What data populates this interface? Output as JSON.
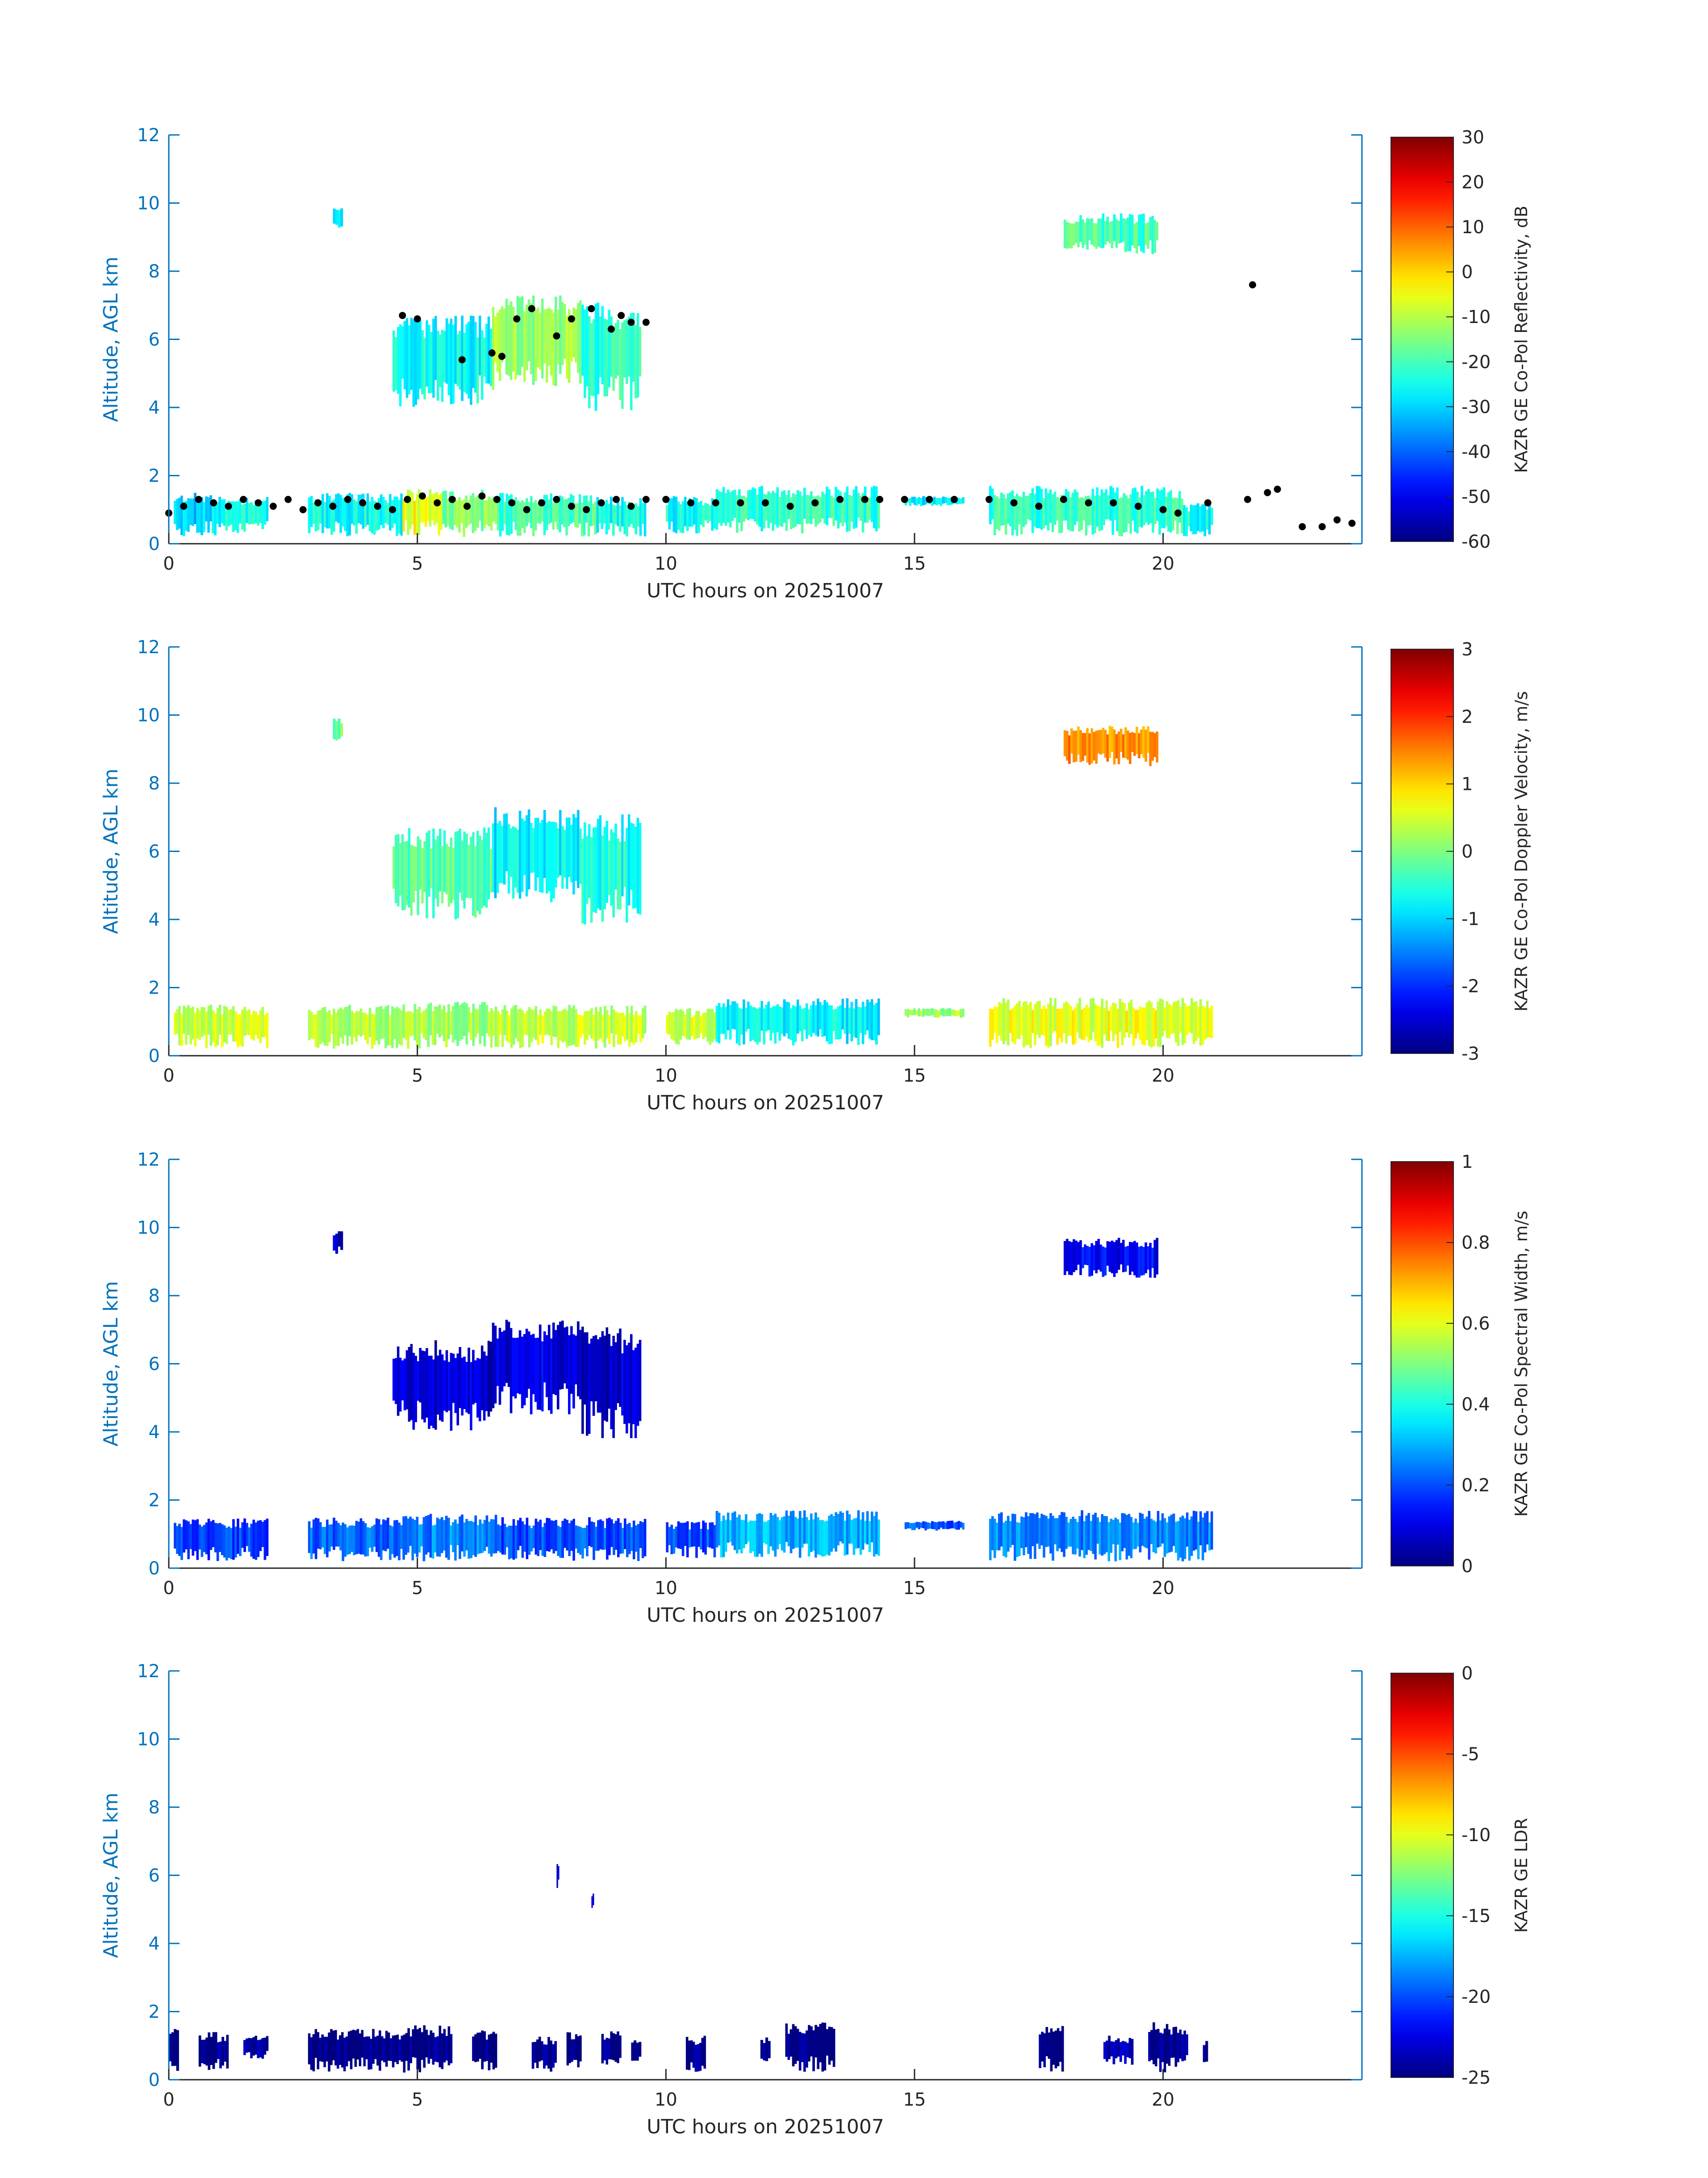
{
  "colors": {
    "axis_blue": "#0072BD",
    "text_dark": "#262626",
    "scatter_black": "#000000"
  },
  "colormap": "jet",
  "chart_data": [
    {
      "type": "heatmap",
      "xlabel": "UTC hours on 20251007",
      "ylabel": "Altitude, AGL km",
      "xlim": [
        0,
        24
      ],
      "ylim": [
        0,
        12
      ],
      "xticks": [
        0,
        5,
        10,
        15,
        20
      ],
      "yticks": [
        0,
        2,
        4,
        6,
        8,
        10,
        12
      ],
      "colorbar": {
        "label": "KAZR GE Co-Pol Reflectivity, dB",
        "range": [
          -60,
          30
        ],
        "ticks": [
          30,
          20,
          10,
          0,
          -10,
          -20,
          -30,
          -40,
          -50,
          -60
        ]
      },
      "patches": [
        {
          "x": [
            0.1,
            1.0
          ],
          "y": [
            0.2,
            1.5
          ],
          "value": -30
        },
        {
          "x": [
            1.0,
            2.0
          ],
          "y": [
            0.3,
            1.4
          ],
          "value": -25
        },
        {
          "x": [
            2.8,
            4.7
          ],
          "y": [
            0.2,
            1.5
          ],
          "value": -25
        },
        {
          "x": [
            4.7,
            5.5
          ],
          "y": [
            0.2,
            1.6
          ],
          "value": -5
        },
        {
          "x": [
            5.5,
            6.6
          ],
          "y": [
            0.2,
            1.6
          ],
          "value": -15
        },
        {
          "x": [
            6.6,
            8.6
          ],
          "y": [
            0.2,
            1.5
          ],
          "value": -20
        },
        {
          "x": [
            8.6,
            9.6
          ],
          "y": [
            0.2,
            1.4
          ],
          "value": -25
        },
        {
          "x": [
            10.0,
            11.0
          ],
          "y": [
            0.3,
            1.4
          ],
          "value": -25
        },
        {
          "x": [
            11.0,
            14.3
          ],
          "y": [
            0.3,
            1.7
          ],
          "value": -22
        },
        {
          "x": [
            14.8,
            16.0
          ],
          "y": [
            1.1,
            1.4
          ],
          "value": -28
        },
        {
          "x": [
            16.5,
            20.4
          ],
          "y": [
            0.2,
            1.7
          ],
          "value": -22
        },
        {
          "x": [
            20.4,
            21.0
          ],
          "y": [
            0.2,
            1.2
          ],
          "value": -25
        },
        {
          "x": [
            4.5,
            6.5
          ],
          "y": [
            4.0,
            6.7
          ],
          "value": -25
        },
        {
          "x": [
            6.5,
            8.3
          ],
          "y": [
            4.5,
            7.3
          ],
          "value": -12
        },
        {
          "x": [
            8.3,
            9.5
          ],
          "y": [
            3.8,
            7.1
          ],
          "value": -22
        },
        {
          "x": [
            3.3,
            3.5
          ],
          "y": [
            9.2,
            9.9
          ],
          "value": -28
        },
        {
          "x": [
            18.0,
            19.9
          ],
          "y": [
            8.5,
            9.7
          ],
          "value": -20
        }
      ],
      "scatter": [
        [
          0.0,
          0.9
        ],
        [
          0.3,
          1.1
        ],
        [
          0.6,
          1.3
        ],
        [
          0.9,
          1.2
        ],
        [
          1.2,
          1.1
        ],
        [
          1.5,
          1.3
        ],
        [
          1.8,
          1.2
        ],
        [
          2.1,
          1.1
        ],
        [
          2.4,
          1.3
        ],
        [
          2.7,
          1.0
        ],
        [
          3.0,
          1.2
        ],
        [
          3.3,
          1.1
        ],
        [
          3.6,
          1.3
        ],
        [
          3.9,
          1.2
        ],
        [
          4.2,
          1.1
        ],
        [
          4.5,
          1.0
        ],
        [
          4.8,
          1.3
        ],
        [
          5.1,
          1.4
        ],
        [
          5.4,
          1.2
        ],
        [
          5.7,
          1.3
        ],
        [
          6.0,
          1.1
        ],
        [
          6.3,
          1.4
        ],
        [
          6.6,
          1.3
        ],
        [
          6.9,
          1.2
        ],
        [
          7.2,
          1.0
        ],
        [
          7.5,
          1.2
        ],
        [
          7.8,
          1.3
        ],
        [
          8.1,
          1.1
        ],
        [
          8.4,
          1.0
        ],
        [
          8.7,
          1.2
        ],
        [
          9.0,
          1.3
        ],
        [
          9.3,
          1.1
        ],
        [
          9.6,
          1.3
        ],
        [
          10.0,
          1.3
        ],
        [
          10.5,
          1.2
        ],
        [
          11.0,
          1.2
        ],
        [
          11.5,
          1.2
        ],
        [
          12.0,
          1.2
        ],
        [
          12.5,
          1.1
        ],
        [
          13.0,
          1.2
        ],
        [
          13.5,
          1.3
        ],
        [
          14.0,
          1.3
        ],
        [
          14.3,
          1.3
        ],
        [
          14.8,
          1.3
        ],
        [
          15.3,
          1.3
        ],
        [
          15.8,
          1.3
        ],
        [
          16.5,
          1.3
        ],
        [
          17.0,
          1.2
        ],
        [
          17.5,
          1.1
        ],
        [
          18.0,
          1.3
        ],
        [
          18.5,
          1.2
        ],
        [
          19.0,
          1.2
        ],
        [
          19.5,
          1.1
        ],
        [
          20.0,
          1.0
        ],
        [
          20.3,
          0.9
        ],
        [
          20.9,
          1.2
        ],
        [
          21.7,
          1.3
        ],
        [
          22.1,
          1.5
        ],
        [
          22.3,
          1.6
        ],
        [
          22.8,
          0.5
        ],
        [
          23.2,
          0.5
        ],
        [
          23.5,
          0.7
        ],
        [
          23.8,
          0.6
        ],
        [
          4.7,
          6.7
        ],
        [
          5.0,
          6.6
        ],
        [
          6.5,
          5.6
        ],
        [
          7.0,
          6.6
        ],
        [
          7.3,
          6.9
        ],
        [
          7.8,
          6.1
        ],
        [
          8.1,
          6.6
        ],
        [
          8.5,
          6.9
        ],
        [
          9.1,
          6.7
        ],
        [
          9.3,
          6.5
        ],
        [
          9.6,
          6.5
        ],
        [
          21.8,
          7.6
        ],
        [
          5.9,
          5.4
        ],
        [
          6.7,
          5.5
        ],
        [
          8.9,
          6.3
        ]
      ]
    },
    {
      "type": "heatmap",
      "xlabel": "UTC hours on 20251007",
      "ylabel": "Altitude, AGL km",
      "xlim": [
        0,
        24
      ],
      "ylim": [
        0,
        12
      ],
      "xticks": [
        0,
        5,
        10,
        15,
        20
      ],
      "yticks": [
        0,
        2,
        4,
        6,
        8,
        10,
        12
      ],
      "colorbar": {
        "label": "KAZR GE Co-Pol Doppler Velocity, m/s",
        "range": [
          -3,
          3
        ],
        "ticks": [
          3,
          2,
          1,
          0,
          -1,
          -2,
          -3
        ]
      },
      "patches": [
        {
          "x": [
            0.1,
            2.0
          ],
          "y": [
            0.2,
            1.5
          ],
          "value": 0.5
        },
        {
          "x": [
            2.8,
            4.7
          ],
          "y": [
            0.2,
            1.5
          ],
          "value": 0.3
        },
        {
          "x": [
            4.7,
            6.6
          ],
          "y": [
            0.2,
            1.6
          ],
          "value": 0.2
        },
        {
          "x": [
            6.6,
            9.6
          ],
          "y": [
            0.2,
            1.5
          ],
          "value": 0.4
        },
        {
          "x": [
            10.0,
            11.0
          ],
          "y": [
            0.3,
            1.4
          ],
          "value": 0.5
        },
        {
          "x": [
            11.0,
            14.3
          ],
          "y": [
            0.3,
            1.7
          ],
          "value": -0.8
        },
        {
          "x": [
            14.8,
            16.0
          ],
          "y": [
            1.1,
            1.4
          ],
          "value": 0.2
        },
        {
          "x": [
            16.5,
            21.0
          ],
          "y": [
            0.2,
            1.7
          ],
          "value": 0.6
        },
        {
          "x": [
            4.5,
            6.5
          ],
          "y": [
            4.0,
            6.7
          ],
          "value": -0.2
        },
        {
          "x": [
            6.5,
            8.3
          ],
          "y": [
            4.5,
            7.3
          ],
          "value": -0.8
        },
        {
          "x": [
            8.3,
            9.5
          ],
          "y": [
            3.8,
            7.1
          ],
          "value": -0.6
        },
        {
          "x": [
            3.3,
            3.5
          ],
          "y": [
            9.2,
            9.9
          ],
          "value": 0.0
        },
        {
          "x": [
            18.0,
            19.9
          ],
          "y": [
            8.5,
            9.7
          ],
          "value": 1.4
        }
      ]
    },
    {
      "type": "heatmap",
      "xlabel": "UTC hours on 20251007",
      "ylabel": "Altitude, AGL km",
      "xlim": [
        0,
        24
      ],
      "ylim": [
        0,
        12
      ],
      "xticks": [
        0,
        5,
        10,
        15,
        20
      ],
      "yticks": [
        0,
        2,
        4,
        6,
        8,
        10,
        12
      ],
      "colorbar": {
        "label": "KAZR GE Co-Pol Spectral Width, m/s",
        "range": [
          0,
          1
        ],
        "ticks": [
          1,
          0.8,
          0.6,
          0.4,
          0.2,
          0
        ]
      },
      "patches": [
        {
          "x": [
            0.1,
            2.0
          ],
          "y": [
            0.2,
            1.5
          ],
          "value": 0.18
        },
        {
          "x": [
            2.8,
            4.7
          ],
          "y": [
            0.2,
            1.5
          ],
          "value": 0.22
        },
        {
          "x": [
            4.7,
            6.6
          ],
          "y": [
            0.2,
            1.6
          ],
          "value": 0.25
        },
        {
          "x": [
            6.6,
            9.6
          ],
          "y": [
            0.2,
            1.5
          ],
          "value": 0.2
        },
        {
          "x": [
            10.0,
            11.0
          ],
          "y": [
            0.3,
            1.4
          ],
          "value": 0.2
        },
        {
          "x": [
            11.0,
            14.3
          ],
          "y": [
            0.3,
            1.7
          ],
          "value": 0.3
        },
        {
          "x": [
            14.8,
            16.0
          ],
          "y": [
            1.1,
            1.4
          ],
          "value": 0.2
        },
        {
          "x": [
            16.5,
            21.0
          ],
          "y": [
            0.2,
            1.7
          ],
          "value": 0.25
        },
        {
          "x": [
            4.5,
            6.5
          ],
          "y": [
            4.0,
            6.7
          ],
          "value": 0.08
        },
        {
          "x": [
            6.5,
            8.3
          ],
          "y": [
            4.5,
            7.3
          ],
          "value": 0.1
        },
        {
          "x": [
            8.3,
            9.5
          ],
          "y": [
            3.8,
            7.1
          ],
          "value": 0.08
        },
        {
          "x": [
            3.3,
            3.5
          ],
          "y": [
            9.2,
            9.9
          ],
          "value": 0.08
        },
        {
          "x": [
            18.0,
            19.9
          ],
          "y": [
            8.5,
            9.7
          ],
          "value": 0.12
        }
      ]
    },
    {
      "type": "heatmap",
      "xlabel": "UTC hours on 20251007",
      "ylabel": "Altitude, AGL km",
      "xlim": [
        0,
        24
      ],
      "ylim": [
        0,
        12
      ],
      "xticks": [
        0,
        5,
        10,
        15,
        20
      ],
      "yticks": [
        0,
        2,
        4,
        6,
        8,
        10,
        12
      ],
      "colorbar": {
        "label": "KAZR GE LDR",
        "range": [
          -25,
          0
        ],
        "ticks": [
          0,
          -5,
          -10,
          -15,
          -20,
          -25
        ]
      },
      "patches": [
        {
          "x": [
            0.0,
            0.2
          ],
          "y": [
            0.2,
            1.6
          ],
          "value": -25
        },
        {
          "x": [
            0.6,
            1.2
          ],
          "y": [
            0.2,
            1.4
          ],
          "value": -25
        },
        {
          "x": [
            1.5,
            2.0
          ],
          "y": [
            0.6,
            1.3
          ],
          "value": -24
        },
        {
          "x": [
            2.8,
            4.8
          ],
          "y": [
            0.2,
            1.5
          ],
          "value": -25
        },
        {
          "x": [
            4.8,
            5.7
          ],
          "y": [
            0.2,
            1.6
          ],
          "value": -25
        },
        {
          "x": [
            6.1,
            6.6
          ],
          "y": [
            0.2,
            1.5
          ],
          "value": -25
        },
        {
          "x": [
            7.3,
            7.8
          ],
          "y": [
            0.2,
            1.3
          ],
          "value": -25
        },
        {
          "x": [
            8.0,
            8.3
          ],
          "y": [
            0.3,
            1.4
          ],
          "value": -25
        },
        {
          "x": [
            8.7,
            9.1
          ],
          "y": [
            0.2,
            1.5
          ],
          "value": -25
        },
        {
          "x": [
            9.3,
            9.5
          ],
          "y": [
            0.5,
            1.2
          ],
          "value": -25
        },
        {
          "x": [
            10.4,
            10.8
          ],
          "y": [
            0.2,
            1.3
          ],
          "value": -25
        },
        {
          "x": [
            11.9,
            12.1
          ],
          "y": [
            0.3,
            1.3
          ],
          "value": -25
        },
        {
          "x": [
            12.4,
            13.4
          ],
          "y": [
            0.2,
            1.7
          ],
          "value": -25
        },
        {
          "x": [
            17.5,
            18.0
          ],
          "y": [
            0.2,
            1.6
          ],
          "value": -25
        },
        {
          "x": [
            18.8,
            19.4
          ],
          "y": [
            0.4,
            1.3
          ],
          "value": -24
        },
        {
          "x": [
            19.7,
            20.5
          ],
          "y": [
            0.2,
            1.7
          ],
          "value": -25
        },
        {
          "x": [
            20.8,
            20.9
          ],
          "y": [
            0.2,
            1.2
          ],
          "value": -25
        },
        {
          "x": [
            7.8,
            7.85
          ],
          "y": [
            5.6,
            6.4
          ],
          "value": -23
        },
        {
          "x": [
            8.5,
            8.55
          ],
          "y": [
            5.0,
            5.5
          ],
          "value": -23
        }
      ]
    }
  ]
}
